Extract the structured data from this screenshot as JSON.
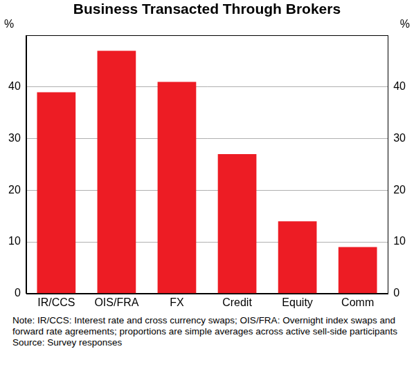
{
  "chart_data": {
    "type": "bar",
    "title": "Business Transacted Through Brokers",
    "ylabel": "%",
    "categories": [
      "IR/CCS",
      "OIS/FRA",
      "FX",
      "Credit",
      "Equity",
      "Comm"
    ],
    "values": [
      39,
      47,
      41,
      27,
      14,
      9
    ],
    "color": "#ed1c24",
    "ylim": [
      0,
      50
    ],
    "yticks": [
      0,
      10,
      20,
      30,
      40
    ],
    "grid": true,
    "note": "Note: IR/CCS: Interest rate and cross currency swaps; OIS/FRA: Overnight index swaps and forward rate agreements; proportions are simple averages across active sell-side participants",
    "source": "Source: Survey responses"
  }
}
